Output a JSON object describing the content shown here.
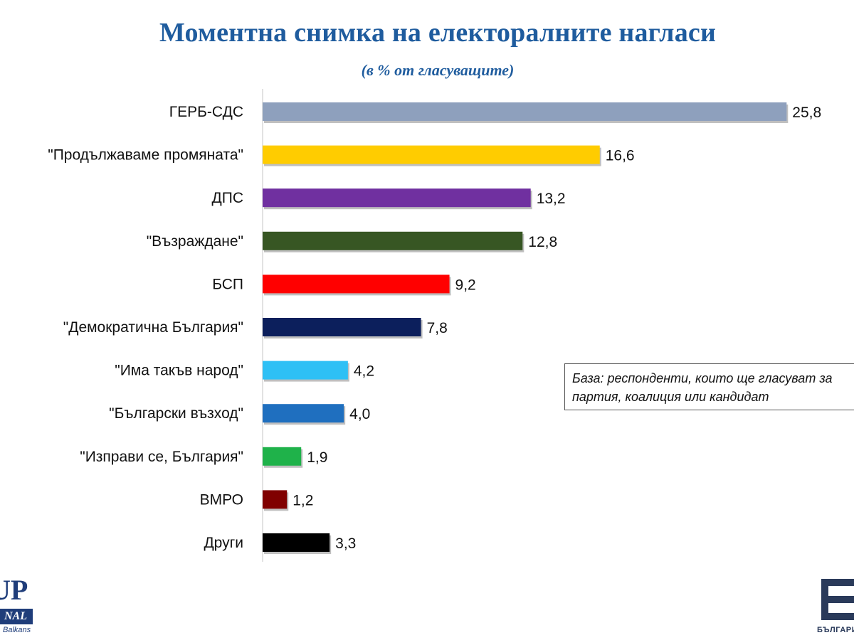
{
  "chart_data": {
    "type": "bar",
    "orientation": "horizontal",
    "title": "Моментна снимка на електоралните нагласи",
    "subtitle": "(в % от гласуващите)",
    "categories": [
      "ГЕРБ-СДС",
      "\"Продължаваме промяната\"",
      "ДПС",
      "\"Възраждане\"",
      "БСП",
      "\"Демократична България\"",
      "\"Има такъв народ\"",
      "\"Български възход\"",
      "\"Изправи се, България\"",
      "ВМРО",
      "Други"
    ],
    "values": [
      25.8,
      16.6,
      13.2,
      12.8,
      9.2,
      7.8,
      4.2,
      4.0,
      1.9,
      1.2,
      3.3
    ],
    "value_labels": [
      "25,8",
      "16,6",
      "13,2",
      "12,8",
      "9,2",
      "7,8",
      "4,2",
      "4,0",
      "1,9",
      "1,2",
      "3,3"
    ],
    "colors": [
      "#8ea0bd",
      "#ffcc00",
      "#7030a0",
      "#375623",
      "#ff0000",
      "#0c1f5c",
      "#2ec0f5",
      "#1f6fbf",
      "#1fb24a",
      "#800000",
      "#000000"
    ],
    "xlim": [
      0,
      26
    ],
    "grid": false,
    "legend": "none",
    "annotation": "База: респонденти, които ще гласуват за партия, коалиция или кандидат"
  },
  "annotation_lines": [
    "База: респонденти, които ще гласуват за",
    "партия, коалиция или кандидат"
  ],
  "logo_left": {
    "big": "UP",
    "band": "NAL",
    "small": "Balkans"
  },
  "logo_right": {
    "small": "БЪЛГАРИЯ"
  }
}
